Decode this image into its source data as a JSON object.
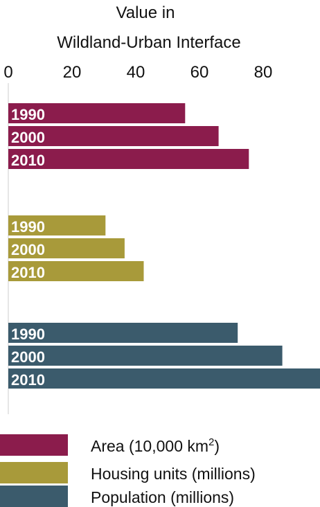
{
  "chart_data": {
    "type": "bar",
    "orientation": "horizontal",
    "xlabel": "Value in Wildland-Urban Interface",
    "xlabel_lines": [
      "Value in",
      "Wildland-Urban Interface"
    ],
    "xlim": [
      0,
      92
    ],
    "xticks": [
      0,
      20,
      40,
      60,
      80
    ],
    "categories": [
      "1990",
      "2000",
      "2010"
    ],
    "series": [
      {
        "name": "Area (10,000 km²)",
        "legend_main": "Area (10,000 km",
        "legend_sup": "2",
        "legend_tail": ")",
        "color": "#8b1c4c",
        "values": [
          55.5,
          66.0,
          75.5
        ]
      },
      {
        "name": "Housing units (millions)",
        "color": "#a89a3a",
        "values": [
          30.5,
          36.5,
          42.5
        ]
      },
      {
        "name": "Population (millions)",
        "color": "#3b5b6c",
        "values": [
          72.0,
          86.0,
          99.0
        ]
      }
    ],
    "legend_position": "bottom",
    "grid": false
  }
}
